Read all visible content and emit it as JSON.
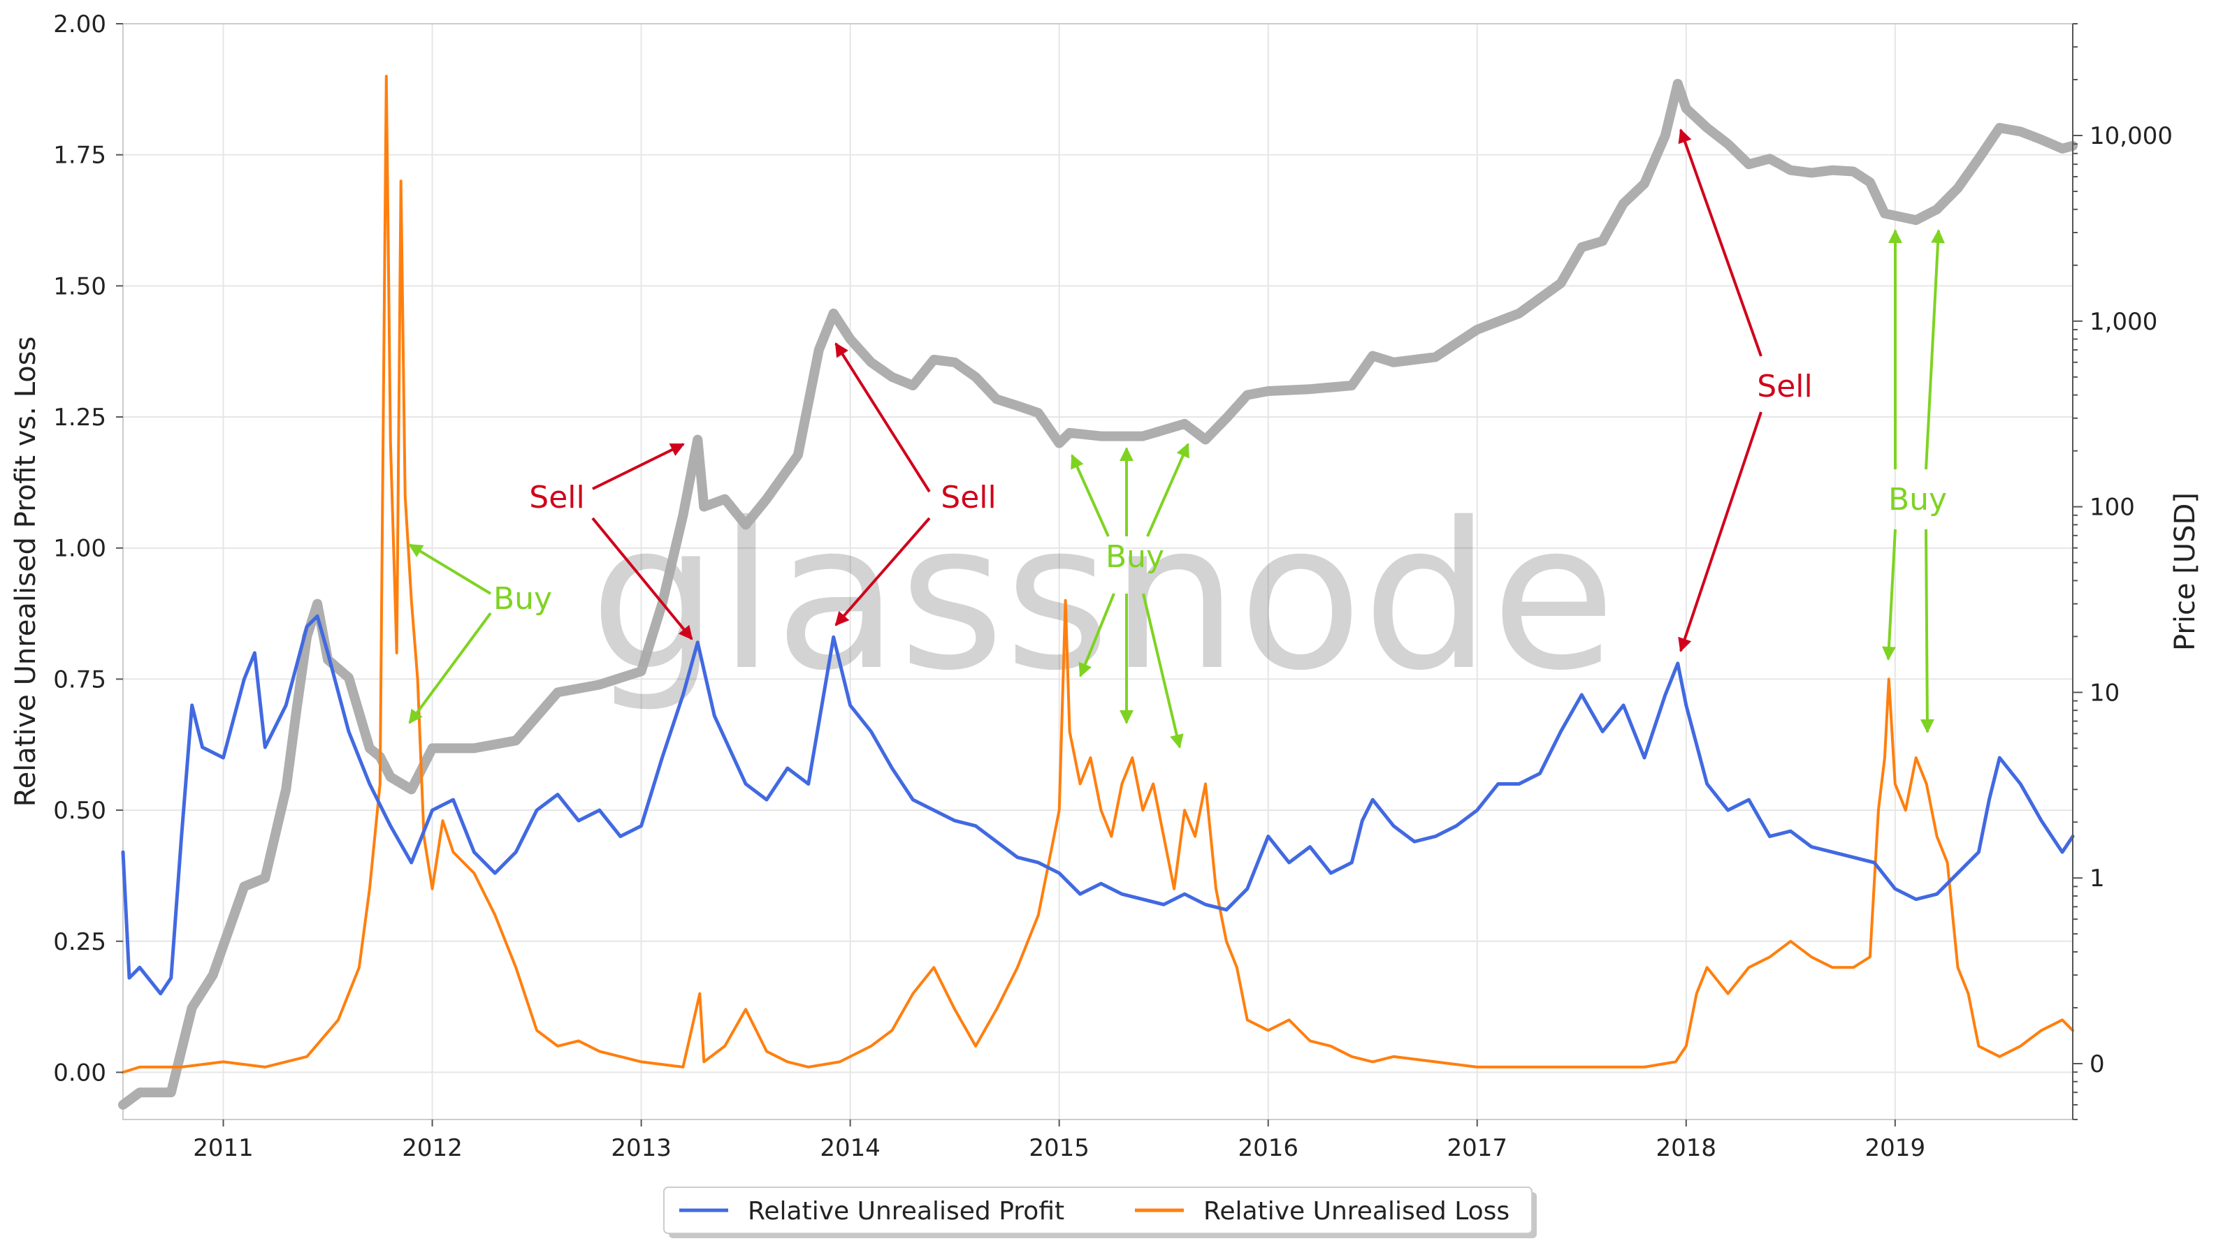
{
  "watermark": "glassnode",
  "colors": {
    "profit": "#4169e1",
    "loss": "#ff7f0e",
    "price": "#aaaaaa",
    "sell": "#d0021b",
    "buy": "#7ed321",
    "grid": "#e6e6e6"
  },
  "annotations": {
    "sell_label": "Sell",
    "buy_label": "Buy"
  },
  "chart_data": {
    "type": "line",
    "title": "",
    "xlabel": "",
    "ylabel_left": "Relative Unrealised Profit vs. Loss",
    "ylabel_right": "Price [USD]",
    "x_range": [
      2010.52,
      2019.85
    ],
    "ylim_left": [
      -0.09,
      2.0
    ],
    "ylim_right_log": [
      0.05,
      40000
    ],
    "right_axis_scale": "log",
    "grid": true,
    "legend_position": "bottom-center",
    "x_ticks": [
      "2011",
      "2012",
      "2013",
      "2014",
      "2015",
      "2016",
      "2017",
      "2018",
      "2019"
    ],
    "y_ticks_left": [
      "0.00",
      "0.25",
      "0.50",
      "0.75",
      "1.00",
      "1.25",
      "1.50",
      "1.75",
      "2.00"
    ],
    "y_ticks_right": [
      "0",
      "1",
      "10",
      "100",
      "1,000",
      "10,000"
    ],
    "legend": [
      "Relative Unrealised Profit",
      "Relative Unrealised Loss"
    ],
    "series": [
      {
        "name": "Relative Unrealised Profit",
        "axis": "left",
        "x": [
          2010.52,
          2010.55,
          2010.6,
          2010.7,
          2010.75,
          2010.8,
          2010.85,
          2010.9,
          2011.0,
          2011.1,
          2011.15,
          2011.2,
          2011.3,
          2011.4,
          2011.45,
          2011.5,
          2011.6,
          2011.7,
          2011.8,
          2011.9,
          2012.0,
          2012.1,
          2012.2,
          2012.3,
          2012.4,
          2012.5,
          2012.6,
          2012.7,
          2012.8,
          2012.9,
          2013.0,
          2013.1,
          2013.2,
          2013.27,
          2013.35,
          2013.5,
          2013.6,
          2013.7,
          2013.8,
          2013.92,
          2014.0,
          2014.1,
          2014.2,
          2014.3,
          2014.4,
          2014.5,
          2014.6,
          2014.7,
          2014.8,
          2014.9,
          2015.0,
          2015.1,
          2015.2,
          2015.3,
          2015.4,
          2015.5,
          2015.6,
          2015.7,
          2015.8,
          2015.9,
          2016.0,
          2016.1,
          2016.2,
          2016.3,
          2016.4,
          2016.45,
          2016.5,
          2016.6,
          2016.7,
          2016.8,
          2016.9,
          2017.0,
          2017.1,
          2017.2,
          2017.3,
          2017.4,
          2017.5,
          2017.6,
          2017.7,
          2017.8,
          2017.9,
          2017.96,
          2018.0,
          2018.1,
          2018.2,
          2018.3,
          2018.4,
          2018.5,
          2018.6,
          2018.7,
          2018.8,
          2018.9,
          2019.0,
          2019.1,
          2019.2,
          2019.3,
          2019.4,
          2019.45,
          2019.5,
          2019.6,
          2019.7,
          2019.8,
          2019.85
        ],
        "values": [
          0.42,
          0.18,
          0.2,
          0.15,
          0.18,
          0.45,
          0.7,
          0.62,
          0.6,
          0.75,
          0.8,
          0.62,
          0.7,
          0.85,
          0.87,
          0.8,
          0.65,
          0.55,
          0.47,
          0.4,
          0.5,
          0.52,
          0.42,
          0.38,
          0.42,
          0.5,
          0.53,
          0.48,
          0.5,
          0.45,
          0.47,
          0.6,
          0.72,
          0.82,
          0.68,
          0.55,
          0.52,
          0.58,
          0.55,
          0.83,
          0.7,
          0.65,
          0.58,
          0.52,
          0.5,
          0.48,
          0.47,
          0.44,
          0.41,
          0.4,
          0.38,
          0.34,
          0.36,
          0.34,
          0.33,
          0.32,
          0.34,
          0.32,
          0.31,
          0.35,
          0.45,
          0.4,
          0.43,
          0.38,
          0.4,
          0.48,
          0.52,
          0.47,
          0.44,
          0.45,
          0.47,
          0.5,
          0.55,
          0.55,
          0.57,
          0.65,
          0.72,
          0.65,
          0.7,
          0.6,
          0.72,
          0.78,
          0.7,
          0.55,
          0.5,
          0.52,
          0.45,
          0.46,
          0.43,
          0.42,
          0.41,
          0.4,
          0.35,
          0.33,
          0.34,
          0.38,
          0.42,
          0.52,
          0.6,
          0.55,
          0.48,
          0.42,
          0.45
        ]
      },
      {
        "name": "Relative Unrealised Loss",
        "axis": "left",
        "x": [
          2010.52,
          2010.6,
          2010.8,
          2011.0,
          2011.2,
          2011.4,
          2011.55,
          2011.65,
          2011.7,
          2011.75,
          2011.78,
          2011.8,
          2011.83,
          2011.85,
          2011.87,
          2011.9,
          2011.93,
          2011.96,
          2012.0,
          2012.05,
          2012.1,
          2012.2,
          2012.3,
          2012.4,
          2012.5,
          2012.6,
          2012.7,
          2012.8,
          2012.9,
          2013.0,
          2013.2,
          2013.28,
          2013.3,
          2013.4,
          2013.5,
          2013.6,
          2013.7,
          2013.8,
          2013.95,
          2014.1,
          2014.2,
          2014.3,
          2014.4,
          2014.5,
          2014.6,
          2014.7,
          2014.8,
          2014.9,
          2015.0,
          2015.03,
          2015.05,
          2015.1,
          2015.15,
          2015.2,
          2015.25,
          2015.3,
          2015.35,
          2015.4,
          2015.45,
          2015.5,
          2015.55,
          2015.6,
          2015.65,
          2015.7,
          2015.75,
          2015.8,
          2015.85,
          2015.9,
          2016.0,
          2016.1,
          2016.2,
          2016.3,
          2016.4,
          2016.5,
          2016.6,
          2016.8,
          2017.0,
          2017.2,
          2017.4,
          2017.6,
          2017.8,
          2017.95,
          2018.0,
          2018.05,
          2018.1,
          2018.2,
          2018.3,
          2018.4,
          2018.5,
          2018.6,
          2018.7,
          2018.8,
          2018.88,
          2018.92,
          2018.95,
          2018.97,
          2019.0,
          2019.05,
          2019.1,
          2019.15,
          2019.2,
          2019.25,
          2019.3,
          2019.35,
          2019.4,
          2019.5,
          2019.6,
          2019.7,
          2019.8,
          2019.85
        ],
        "values": [
          0.0,
          0.01,
          0.01,
          0.02,
          0.01,
          0.03,
          0.1,
          0.2,
          0.35,
          0.55,
          1.9,
          1.2,
          0.8,
          1.7,
          1.1,
          0.9,
          0.75,
          0.45,
          0.35,
          0.48,
          0.42,
          0.38,
          0.3,
          0.2,
          0.08,
          0.05,
          0.06,
          0.04,
          0.03,
          0.02,
          0.01,
          0.15,
          0.02,
          0.05,
          0.12,
          0.04,
          0.02,
          0.01,
          0.02,
          0.05,
          0.08,
          0.15,
          0.2,
          0.12,
          0.05,
          0.12,
          0.2,
          0.3,
          0.5,
          0.9,
          0.65,
          0.55,
          0.6,
          0.5,
          0.45,
          0.55,
          0.6,
          0.5,
          0.55,
          0.45,
          0.35,
          0.5,
          0.45,
          0.55,
          0.35,
          0.25,
          0.2,
          0.1,
          0.08,
          0.1,
          0.06,
          0.05,
          0.03,
          0.02,
          0.03,
          0.02,
          0.01,
          0.01,
          0.01,
          0.01,
          0.01,
          0.02,
          0.05,
          0.15,
          0.2,
          0.15,
          0.2,
          0.22,
          0.25,
          0.22,
          0.2,
          0.2,
          0.22,
          0.5,
          0.6,
          0.75,
          0.55,
          0.5,
          0.6,
          0.55,
          0.45,
          0.4,
          0.2,
          0.15,
          0.05,
          0.03,
          0.05,
          0.08,
          0.1,
          0.08
        ]
      },
      {
        "name": "",
        "axis": "right",
        "x": [
          2010.52,
          2010.6,
          2010.75,
          2010.85,
          2010.95,
          2011.1,
          2011.2,
          2011.3,
          2011.35,
          2011.4,
          2011.45,
          2011.5,
          2011.6,
          2011.7,
          2011.75,
          2011.8,
          2011.9,
          2012.0,
          2012.2,
          2012.4,
          2012.6,
          2012.8,
          2013.0,
          2013.1,
          2013.2,
          2013.27,
          2013.3,
          2013.4,
          2013.5,
          2013.6,
          2013.75,
          2013.85,
          2013.92,
          2014.0,
          2014.1,
          2014.2,
          2014.3,
          2014.4,
          2014.5,
          2014.6,
          2014.7,
          2014.8,
          2014.9,
          2015.0,
          2015.05,
          2015.2,
          2015.4,
          2015.6,
          2015.7,
          2015.8,
          2015.9,
          2016.0,
          2016.2,
          2016.4,
          2016.5,
          2016.6,
          2016.8,
          2017.0,
          2017.2,
          2017.4,
          2017.5,
          2017.6,
          2017.7,
          2017.8,
          2017.9,
          2017.96,
          2018.0,
          2018.1,
          2018.2,
          2018.3,
          2018.4,
          2018.5,
          2018.6,
          2018.7,
          2018.8,
          2018.88,
          2018.95,
          2019.0,
          2019.1,
          2019.2,
          2019.3,
          2019.4,
          2019.5,
          2019.6,
          2019.7,
          2019.8,
          2019.85
        ],
        "values": [
          0.06,
          0.07,
          0.07,
          0.2,
          0.3,
          0.9,
          1.0,
          3.0,
          8.0,
          20.0,
          30.0,
          15.0,
          12.0,
          5.0,
          4.5,
          3.5,
          3.0,
          5.0,
          5.0,
          5.5,
          10.0,
          11.0,
          13.0,
          30.0,
          90.0,
          230.0,
          100.0,
          110.0,
          80.0,
          110.0,
          190.0,
          700.0,
          1100.0,
          800.0,
          600.0,
          500.0,
          450.0,
          620.0,
          600.0,
          500.0,
          380.0,
          350.0,
          320.0,
          220.0,
          250.0,
          240.0,
          240.0,
          280.0,
          230.0,
          300.0,
          400.0,
          420.0,
          430.0,
          450.0,
          650.0,
          600.0,
          640.0,
          900.0,
          1100.0,
          1600.0,
          2500.0,
          2700.0,
          4300.0,
          5500.0,
          10000.0,
          19000.0,
          14000.0,
          11000.0,
          9000.0,
          7000.0,
          7500.0,
          6500.0,
          6300.0,
          6500.0,
          6400.0,
          5600.0,
          3800.0,
          3700.0,
          3500.0,
          4000.0,
          5200.0,
          7500.0,
          11000.0,
          10500.0,
          9500.0,
          8500.0,
          8800.0
        ]
      }
    ]
  }
}
